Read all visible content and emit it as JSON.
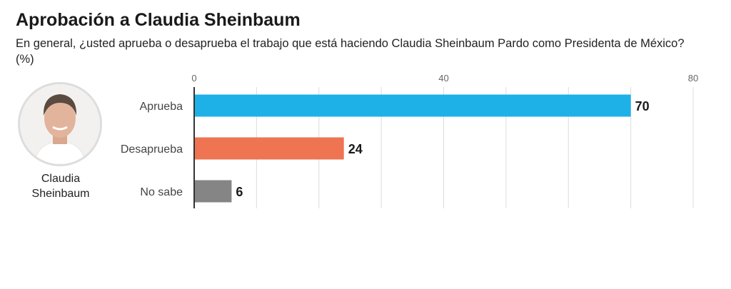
{
  "title": "Aprobación a Claudia Sheinbaum",
  "subtitle": "En general, ¿usted aprueba o desaprueba el trabajo que está haciendo Claudia Sheinbaum Pardo como Presidenta de México?  (%)",
  "portrait": {
    "name_line1": "Claudia",
    "name_line2": "Sheinbaum"
  },
  "chart_data": {
    "type": "bar",
    "orientation": "horizontal",
    "title": "Aprobación a Claudia Sheinbaum",
    "categories": [
      "Aprueba",
      "Desaprueba",
      "No sabe"
    ],
    "values": [
      70,
      24,
      6
    ],
    "colors": [
      "#1eb1e7",
      "#ee7452",
      "#858585"
    ],
    "xlim": [
      0,
      80
    ],
    "xticks": [
      0,
      40,
      80
    ],
    "grid_step": 10,
    "grid": true,
    "unit": "%"
  }
}
